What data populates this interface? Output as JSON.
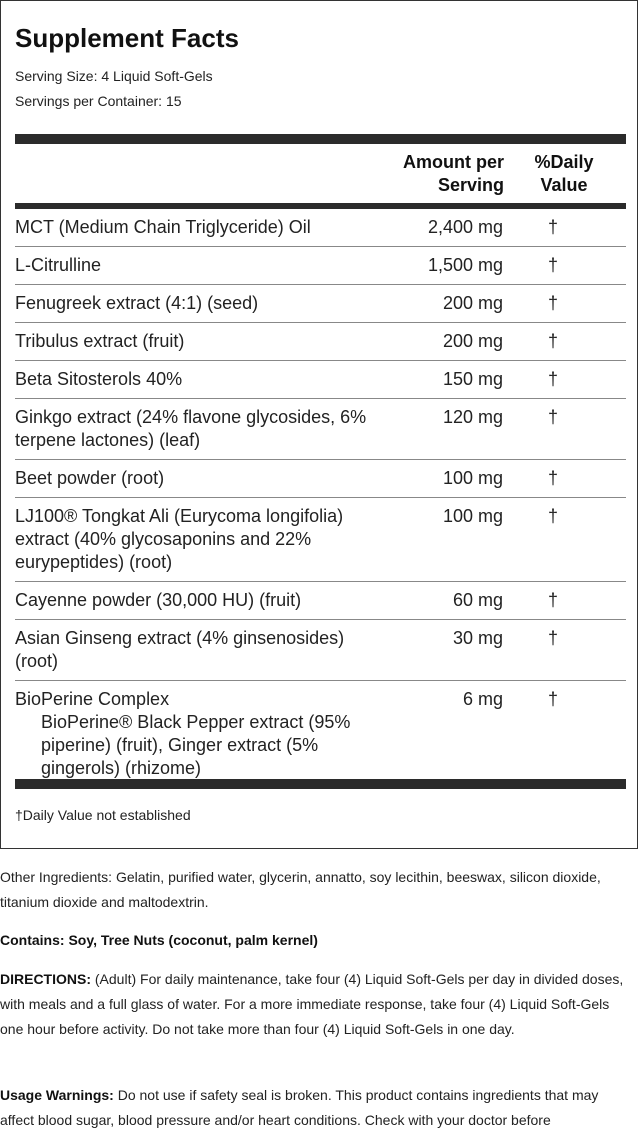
{
  "title": "Supplement Facts",
  "serving_size": "Serving Size: 4 Liquid Soft-Gels",
  "servings_per_container": "Servings per Container: 15",
  "headers": {
    "amount": [
      "Amount per",
      "Serving"
    ],
    "dv": [
      "%Daily",
      "Value"
    ]
  },
  "rows": [
    {
      "name": "MCT (Medium Chain Triglyceride) Oil",
      "amount": "2,400 mg",
      "dv": "†"
    },
    {
      "name": "L-Citrulline",
      "amount": "1,500 mg",
      "dv": "†"
    },
    {
      "name": "Fenugreek extract (4:1) (seed)",
      "amount": "200 mg",
      "dv": "†"
    },
    {
      "name": "Tribulus extract (fruit)",
      "amount": "200 mg",
      "dv": "†"
    },
    {
      "name": "Beta Sitosterols 40%",
      "amount": "150 mg",
      "dv": "†"
    },
    {
      "name": "Ginkgo extract (24% flavone glycosides, 6% terpene lactones) (leaf)",
      "amount": "120 mg",
      "dv": "†"
    },
    {
      "name": "Beet powder (root)",
      "amount": "100 mg",
      "dv": "†"
    },
    {
      "name": "LJ100® Tongkat Ali (Eurycoma longifolia) extract (40% glycosaponins and 22% eurypeptides) (root)",
      "amount": "100 mg",
      "dv": "†"
    },
    {
      "name": "Cayenne powder (30,000 HU) (fruit)",
      "amount": "60 mg",
      "dv": "†"
    },
    {
      "name": "Asian Ginseng extract (4% ginsenosides) (root)",
      "amount": "30 mg",
      "dv": "†"
    },
    {
      "name": "BioPerine Complex",
      "sub": "BioPerine® Black Pepper extract (95% piperine) (fruit), Ginger extract (5% gingerols) (rhizome)",
      "amount": "6 mg",
      "dv": "†"
    }
  ],
  "footnote": "†Daily Value not established",
  "other_ingredients": "Other Ingredients: Gelatin, purified water, glycerin, annatto, soy lecithin, beeswax, silicon dioxide, titanium dioxide and maltodextrin.",
  "contains": "Contains: Soy, Tree Nuts (coconut, palm kernel)",
  "directions": {
    "label": "DIRECTIONS:",
    "text": " (Adult) For daily maintenance, take four (4) Liquid Soft-Gels per day in divided doses, with meals and a full glass of water. For a more immediate response, take four (4) Liquid Soft-Gels one hour before activity. Do not take more than four (4) Liquid Soft-Gels in one day."
  },
  "warnings": {
    "label": "Usage Warnings:",
    "text": " Do not use if safety seal is broken. This product contains ingredients that may affect blood sugar, blood pressure and/or heart conditions. Check with your doctor before"
  }
}
